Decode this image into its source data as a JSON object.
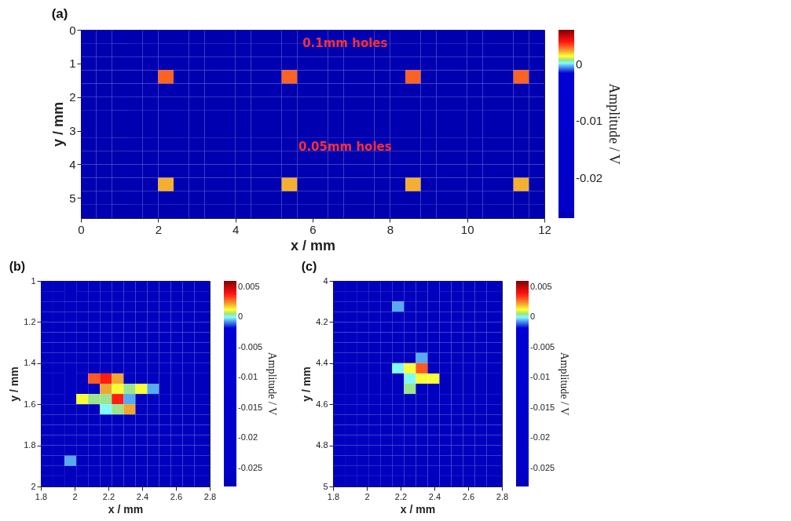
{
  "chart_data": [
    {
      "type": "heatmap",
      "title": "(a)",
      "xlabel": "x / mm",
      "ylabel": "y / mm",
      "clabel": "Amplitude / V",
      "annotations": [
        "0.1mm holes",
        "0.05mm holes"
      ],
      "xlim": [
        0,
        12
      ],
      "xticks": [
        0,
        2,
        4,
        6,
        8,
        10,
        12
      ],
      "ylim": [
        5.6,
        0
      ],
      "yticks": [
        0,
        1,
        2,
        3,
        4,
        5
      ],
      "clim": [
        -0.027,
        0.006
      ],
      "cticks": [
        0,
        -0.01,
        -0.02
      ],
      "x": [
        0.2,
        0.6,
        1,
        1.4,
        1.8,
        2.2,
        2.6,
        3,
        3.4,
        3.8,
        4.2,
        4.6,
        5,
        5.4,
        5.8,
        6.2,
        6.6,
        7,
        7.4,
        7.8,
        8.2,
        8.6,
        9,
        9.4,
        9.8,
        10.2,
        10.6,
        11,
        11.4,
        11.8
      ],
      "y": [
        0.2,
        0.6,
        1,
        1.4,
        1.8,
        2.2,
        2.6,
        3,
        3.4,
        3.8,
        4.2,
        4.6,
        5,
        5.4
      ],
      "cells": [
        [
          -0.027,
          -0.027,
          -0.027,
          -0.027,
          -0.027,
          -0.027,
          -0.027,
          -0.027,
          -0.027,
          -0.027,
          -0.027,
          -0.027,
          -0.027,
          -0.027,
          -0.027,
          -0.027,
          -0.027,
          -0.027,
          -0.027,
          -0.027,
          -0.027,
          -0.027,
          -0.027,
          -0.027,
          -0.027,
          -0.027,
          -0.027,
          -0.027,
          -0.027,
          -0.027
        ],
        [
          -0.027,
          -0.027,
          -0.027,
          -0.027,
          -0.027,
          -0.027,
          -0.027,
          -0.027,
          -0.027,
          -0.027,
          -0.027,
          -0.027,
          -0.027,
          -0.027,
          -0.027,
          -0.027,
          -0.027,
          -0.027,
          -0.027,
          -0.027,
          -0.027,
          -0.027,
          -0.027,
          -0.027,
          -0.027,
          -0.027,
          -0.027,
          -0.027,
          -0.027,
          -0.027
        ],
        [
          -0.027,
          -0.027,
          -0.027,
          -0.027,
          -0.027,
          -0.027,
          -0.027,
          -0.027,
          -0.027,
          -0.027,
          -0.027,
          -0.027,
          -0.027,
          -0.027,
          -0.027,
          -0.027,
          -0.027,
          -0.027,
          -0.027,
          -0.027,
          -0.027,
          -0.027,
          -0.027,
          -0.027,
          -0.027,
          -0.027,
          -0.027,
          -0.027,
          -0.027,
          -0.027
        ],
        [
          -0.027,
          -0.027,
          -0.027,
          -0.027,
          -0.027,
          0.003,
          -0.027,
          -0.027,
          -0.027,
          -0.027,
          -0.027,
          -0.027,
          -0.027,
          0.003,
          -0.027,
          -0.027,
          -0.027,
          -0.027,
          -0.027,
          -0.027,
          -0.027,
          0.003,
          -0.027,
          -0.027,
          -0.027,
          -0.027,
          -0.027,
          -0.027,
          0.003,
          -0.027
        ],
        [
          -0.027,
          -0.027,
          -0.027,
          -0.027,
          -0.027,
          -0.027,
          -0.027,
          -0.027,
          -0.027,
          -0.027,
          -0.027,
          -0.027,
          -0.027,
          -0.027,
          -0.027,
          -0.027,
          -0.027,
          -0.027,
          -0.027,
          -0.027,
          -0.027,
          -0.027,
          -0.027,
          -0.027,
          -0.027,
          -0.027,
          -0.027,
          -0.027,
          -0.027,
          -0.027
        ],
        [
          -0.027,
          -0.027,
          -0.027,
          -0.027,
          -0.027,
          -0.027,
          -0.027,
          -0.027,
          -0.027,
          -0.027,
          -0.027,
          -0.027,
          -0.027,
          -0.027,
          -0.027,
          -0.027,
          -0.027,
          -0.027,
          -0.027,
          -0.027,
          -0.027,
          -0.027,
          -0.027,
          -0.027,
          -0.027,
          -0.027,
          -0.027,
          -0.027,
          -0.027,
          -0.027
        ],
        [
          -0.027,
          -0.027,
          -0.027,
          -0.027,
          -0.027,
          -0.027,
          -0.027,
          -0.027,
          -0.027,
          -0.027,
          -0.027,
          -0.027,
          -0.027,
          -0.027,
          -0.027,
          -0.027,
          -0.027,
          -0.027,
          -0.027,
          -0.027,
          -0.027,
          -0.027,
          -0.027,
          -0.027,
          -0.027,
          -0.027,
          -0.027,
          -0.027,
          -0.027,
          -0.027
        ],
        [
          -0.027,
          -0.027,
          -0.027,
          -0.027,
          -0.027,
          -0.027,
          -0.027,
          -0.027,
          -0.027,
          -0.027,
          -0.027,
          -0.027,
          -0.027,
          -0.027,
          -0.027,
          -0.027,
          -0.027,
          -0.027,
          -0.027,
          -0.027,
          -0.027,
          -0.027,
          -0.027,
          -0.027,
          -0.027,
          -0.027,
          -0.027,
          -0.027,
          -0.027,
          -0.027
        ],
        [
          -0.027,
          -0.027,
          -0.027,
          -0.027,
          -0.027,
          -0.027,
          -0.027,
          -0.027,
          -0.027,
          -0.027,
          -0.027,
          -0.027,
          -0.027,
          -0.027,
          -0.027,
          -0.027,
          -0.027,
          -0.027,
          -0.027,
          -0.027,
          -0.027,
          -0.027,
          -0.027,
          -0.027,
          -0.027,
          -0.027,
          -0.027,
          -0.027,
          -0.027,
          -0.027
        ],
        [
          -0.027,
          -0.027,
          -0.027,
          -0.027,
          -0.027,
          -0.027,
          -0.027,
          -0.027,
          -0.027,
          -0.027,
          -0.027,
          -0.027,
          -0.027,
          -0.027,
          -0.027,
          -0.027,
          -0.027,
          -0.027,
          -0.027,
          -0.027,
          -0.027,
          -0.027,
          -0.027,
          -0.027,
          -0.027,
          -0.027,
          -0.027,
          -0.027,
          -0.027,
          -0.027
        ],
        [
          -0.027,
          -0.027,
          -0.027,
          -0.027,
          -0.027,
          -0.027,
          -0.027,
          -0.027,
          -0.027,
          -0.027,
          -0.027,
          -0.027,
          -0.027,
          -0.027,
          -0.027,
          -0.027,
          -0.027,
          -0.027,
          -0.027,
          -0.027,
          -0.027,
          -0.027,
          -0.027,
          -0.027,
          -0.027,
          -0.027,
          -0.027,
          -0.027,
          -0.027,
          -0.027
        ],
        [
          -0.027,
          -0.027,
          -0.027,
          -0.027,
          -0.027,
          0.0022,
          -0.027,
          -0.027,
          -0.027,
          -0.027,
          -0.027,
          -0.027,
          -0.027,
          0.0022,
          -0.027,
          -0.027,
          -0.027,
          -0.027,
          -0.027,
          -0.027,
          -0.027,
          0.0022,
          -0.027,
          -0.027,
          -0.027,
          -0.027,
          -0.027,
          -0.027,
          0.0022,
          -0.027
        ],
        [
          -0.027,
          -0.027,
          -0.027,
          -0.027,
          -0.027,
          -0.027,
          -0.027,
          -0.027,
          -0.027,
          -0.027,
          -0.027,
          -0.027,
          -0.027,
          -0.027,
          -0.027,
          -0.027,
          -0.027,
          -0.027,
          -0.027,
          -0.027,
          -0.027,
          -0.027,
          -0.027,
          -0.027,
          -0.027,
          -0.027,
          -0.027,
          -0.027,
          -0.027,
          -0.027
        ],
        [
          -0.027,
          -0.027,
          -0.027,
          -0.027,
          -0.027,
          -0.027,
          -0.027,
          -0.027,
          -0.027,
          -0.027,
          -0.027,
          -0.027,
          -0.027,
          -0.027,
          -0.027,
          -0.027,
          -0.027,
          -0.027,
          -0.027,
          -0.027,
          -0.027,
          -0.027,
          -0.027,
          -0.027,
          -0.027,
          -0.027,
          -0.027,
          -0.027,
          -0.027,
          -0.027
        ]
      ]
    },
    {
      "type": "heatmap",
      "title": "(b)",
      "xlabel": "x / mm",
      "ylabel": "y / mm",
      "clabel": "Amplitude / V",
      "xlim": [
        1.8,
        2.8
      ],
      "xticks": [
        1.8,
        2,
        2.2,
        2.4,
        2.6,
        2.8
      ],
      "ylim": [
        2,
        1
      ],
      "yticks": [
        1,
        1.2,
        1.4,
        1.6,
        1.8,
        2
      ],
      "clim": [
        -0.028,
        0.006
      ],
      "cticks": [
        0.005,
        0,
        -0.005,
        -0.01,
        -0.015,
        -0.02,
        -0.025
      ],
      "x": [
        1.835,
        1.905,
        1.975,
        2.045,
        2.115,
        2.185,
        2.255,
        2.325,
        2.395,
        2.465,
        2.535,
        2.605,
        2.675,
        2.745
      ],
      "y": [
        1.025,
        1.075,
        1.125,
        1.175,
        1.225,
        1.275,
        1.325,
        1.375,
        1.425,
        1.475,
        1.525,
        1.575,
        1.625,
        1.675,
        1.725,
        1.775,
        1.825,
        1.875,
        1.925,
        1.975
      ],
      "cells": [
        [
          -0.027,
          -0.027,
          -0.027,
          -0.027,
          -0.027,
          -0.027,
          -0.027,
          -0.027,
          -0.027,
          -0.027,
          -0.027,
          -0.027,
          -0.027,
          -0.027
        ],
        [
          -0.027,
          -0.027,
          -0.027,
          -0.027,
          -0.027,
          -0.027,
          -0.027,
          -0.027,
          -0.027,
          -0.027,
          -0.027,
          -0.027,
          -0.027,
          -0.027
        ],
        [
          -0.027,
          -0.027,
          -0.027,
          -0.027,
          -0.027,
          -0.027,
          -0.027,
          -0.027,
          -0.027,
          -0.027,
          -0.027,
          -0.027,
          -0.027,
          -0.027
        ],
        [
          -0.027,
          -0.027,
          -0.027,
          -0.027,
          -0.027,
          -0.027,
          -0.027,
          -0.027,
          -0.027,
          -0.027,
          -0.027,
          -0.027,
          -0.027,
          -0.027
        ],
        [
          -0.027,
          -0.027,
          -0.027,
          -0.027,
          -0.027,
          -0.027,
          -0.027,
          -0.027,
          -0.027,
          -0.027,
          -0.027,
          -0.027,
          -0.027,
          -0.027
        ],
        [
          -0.027,
          -0.027,
          -0.027,
          -0.027,
          -0.027,
          -0.027,
          -0.027,
          -0.027,
          -0.027,
          -0.027,
          -0.027,
          -0.027,
          -0.027,
          -0.027
        ],
        [
          -0.027,
          -0.027,
          -0.027,
          -0.027,
          -0.027,
          -0.027,
          -0.027,
          -0.027,
          -0.027,
          -0.027,
          -0.027,
          -0.027,
          -0.027,
          -0.027
        ],
        [
          -0.027,
          -0.027,
          -0.027,
          -0.027,
          -0.027,
          -0.027,
          -0.027,
          -0.027,
          -0.027,
          -0.027,
          -0.027,
          -0.027,
          -0.027,
          -0.027
        ],
        [
          -0.027,
          -0.027,
          -0.027,
          -0.027,
          -0.027,
          -0.027,
          -0.027,
          -0.027,
          -0.027,
          -0.027,
          -0.027,
          -0.027,
          -0.027,
          -0.027
        ],
        [
          -0.027,
          -0.027,
          -0.027,
          -0.027,
          0.003,
          0.0038,
          0.0022,
          -0.027,
          -0.027,
          -0.027,
          -0.027,
          -0.027,
          -0.027,
          -0.027
        ],
        [
          -0.027,
          -0.027,
          -0.027,
          -0.027,
          -0.027,
          0.0022,
          0.0012,
          0.0005,
          0.0012,
          -0.0006,
          -0.027,
          -0.027,
          -0.027,
          -0.027
        ],
        [
          -0.027,
          -0.027,
          -0.027,
          0.0012,
          0.0005,
          0.0005,
          0.0038,
          -0.0006,
          -0.027,
          -0.027,
          -0.027,
          -0.027,
          -0.027,
          -0.027
        ],
        [
          -0.027,
          -0.027,
          -0.027,
          -0.027,
          -0.027,
          0,
          0.0005,
          0.0022,
          -0.027,
          -0.027,
          -0.027,
          -0.027,
          -0.027,
          -0.027
        ],
        [
          -0.027,
          -0.027,
          -0.027,
          -0.027,
          -0.027,
          -0.027,
          -0.027,
          -0.027,
          -0.027,
          -0.027,
          -0.027,
          -0.027,
          -0.027,
          -0.027
        ],
        [
          -0.027,
          -0.027,
          -0.027,
          -0.027,
          -0.027,
          -0.027,
          -0.027,
          -0.027,
          -0.027,
          -0.027,
          -0.027,
          -0.027,
          -0.027,
          -0.027
        ],
        [
          -0.027,
          -0.027,
          -0.027,
          -0.027,
          -0.027,
          -0.027,
          -0.027,
          -0.027,
          -0.027,
          -0.027,
          -0.027,
          -0.027,
          -0.027,
          -0.027
        ],
        [
          -0.027,
          -0.027,
          -0.027,
          -0.027,
          -0.027,
          -0.027,
          -0.027,
          -0.027,
          -0.027,
          -0.027,
          -0.027,
          -0.027,
          -0.027,
          -0.027
        ],
        [
          -0.027,
          -0.027,
          -0.0006,
          -0.027,
          -0.027,
          -0.027,
          -0.027,
          -0.027,
          -0.027,
          -0.027,
          -0.027,
          -0.027,
          -0.027,
          -0.027
        ],
        [
          -0.027,
          -0.027,
          -0.027,
          -0.027,
          -0.027,
          -0.027,
          -0.027,
          -0.027,
          -0.027,
          -0.027,
          -0.027,
          -0.027,
          -0.027,
          -0.027
        ],
        [
          -0.027,
          -0.027,
          -0.027,
          -0.027,
          -0.027,
          -0.027,
          -0.027,
          -0.027,
          -0.027,
          -0.027,
          -0.027,
          -0.027,
          -0.027,
          -0.027
        ]
      ]
    },
    {
      "type": "heatmap",
      "title": "(c)",
      "xlabel": "x / mm",
      "ylabel": "y / mm",
      "clabel": "Amplitude / V",
      "xlim": [
        1.8,
        2.8
      ],
      "xticks": [
        1.8,
        2,
        2.2,
        2.4,
        2.6,
        2.8
      ],
      "ylim": [
        5,
        4
      ],
      "yticks": [
        4,
        4.2,
        4.4,
        4.6,
        4.8,
        5
      ],
      "clim": [
        -0.028,
        0.006
      ],
      "cticks": [
        0.005,
        0,
        -0.005,
        -0.01,
        -0.015,
        -0.02,
        -0.025
      ],
      "x": [
        1.835,
        1.905,
        1.975,
        2.045,
        2.115,
        2.185,
        2.255,
        2.325,
        2.395,
        2.465,
        2.535,
        2.605,
        2.675,
        2.745
      ],
      "y": [
        4.025,
        4.075,
        4.125,
        4.175,
        4.225,
        4.275,
        4.325,
        4.375,
        4.425,
        4.475,
        4.525,
        4.575,
        4.625,
        4.675,
        4.725,
        4.775,
        4.825,
        4.875,
        4.925,
        4.975
      ],
      "cells": [
        [
          -0.027,
          -0.027,
          -0.027,
          -0.027,
          -0.027,
          -0.027,
          -0.027,
          -0.027,
          -0.027,
          -0.027,
          -0.027,
          -0.027,
          -0.027,
          -0.027
        ],
        [
          -0.027,
          -0.027,
          -0.027,
          -0.027,
          -0.027,
          -0.027,
          -0.027,
          -0.027,
          -0.027,
          -0.027,
          -0.027,
          -0.027,
          -0.027,
          -0.027
        ],
        [
          -0.027,
          -0.027,
          -0.027,
          -0.027,
          -0.027,
          -0.0006,
          -0.027,
          -0.027,
          -0.027,
          -0.027,
          -0.027,
          -0.027,
          -0.027,
          -0.027
        ],
        [
          -0.027,
          -0.027,
          -0.027,
          -0.027,
          -0.027,
          -0.027,
          -0.027,
          -0.027,
          -0.027,
          -0.027,
          -0.027,
          -0.027,
          -0.027,
          -0.027
        ],
        [
          -0.027,
          -0.027,
          -0.027,
          -0.027,
          -0.027,
          -0.027,
          -0.027,
          -0.027,
          -0.027,
          -0.027,
          -0.027,
          -0.027,
          -0.027,
          -0.027
        ],
        [
          -0.027,
          -0.027,
          -0.027,
          -0.027,
          -0.027,
          -0.027,
          -0.027,
          -0.027,
          -0.027,
          -0.027,
          -0.027,
          -0.027,
          -0.027,
          -0.027
        ],
        [
          -0.027,
          -0.027,
          -0.027,
          -0.027,
          -0.027,
          -0.027,
          -0.027,
          -0.027,
          -0.027,
          -0.027,
          -0.027,
          -0.027,
          -0.027,
          -0.027
        ],
        [
          -0.027,
          -0.027,
          -0.027,
          -0.027,
          -0.027,
          -0.027,
          -0.027,
          -0.0006,
          -0.027,
          -0.027,
          -0.027,
          -0.027,
          -0.027,
          -0.027
        ],
        [
          -0.027,
          -0.027,
          -0.027,
          -0.027,
          -0.027,
          0,
          0.0012,
          0.003,
          -0.027,
          -0.027,
          -0.027,
          -0.027,
          -0.027,
          -0.027
        ],
        [
          -0.027,
          -0.027,
          -0.027,
          -0.027,
          -0.027,
          -0.027,
          0,
          0.0012,
          0.0012,
          -0.027,
          -0.027,
          -0.027,
          -0.027,
          -0.027
        ],
        [
          -0.027,
          -0.027,
          -0.027,
          -0.027,
          -0.027,
          -0.027,
          0.0005,
          -0.027,
          -0.027,
          -0.027,
          -0.027,
          -0.027,
          -0.027,
          -0.027
        ],
        [
          -0.027,
          -0.027,
          -0.027,
          -0.027,
          -0.027,
          -0.027,
          -0.027,
          -0.027,
          -0.027,
          -0.027,
          -0.027,
          -0.027,
          -0.027,
          -0.027
        ],
        [
          -0.027,
          -0.027,
          -0.027,
          -0.027,
          -0.027,
          -0.027,
          -0.027,
          -0.027,
          -0.027,
          -0.027,
          -0.027,
          -0.027,
          -0.027,
          -0.027
        ],
        [
          -0.027,
          -0.027,
          -0.027,
          -0.027,
          -0.027,
          -0.027,
          -0.027,
          -0.027,
          -0.027,
          -0.027,
          -0.027,
          -0.027,
          -0.027,
          -0.027
        ],
        [
          -0.027,
          -0.027,
          -0.027,
          -0.027,
          -0.027,
          -0.027,
          -0.027,
          -0.027,
          -0.027,
          -0.027,
          -0.027,
          -0.027,
          -0.027,
          -0.027
        ],
        [
          -0.027,
          -0.027,
          -0.027,
          -0.027,
          -0.027,
          -0.027,
          -0.027,
          -0.027,
          -0.027,
          -0.027,
          -0.027,
          -0.027,
          -0.027,
          -0.027
        ],
        [
          -0.027,
          -0.027,
          -0.027,
          -0.027,
          -0.027,
          -0.027,
          -0.027,
          -0.027,
          -0.027,
          -0.027,
          -0.027,
          -0.027,
          -0.027,
          -0.027
        ],
        [
          -0.027,
          -0.027,
          -0.027,
          -0.027,
          -0.027,
          -0.027,
          -0.027,
          -0.027,
          -0.027,
          -0.027,
          -0.027,
          -0.027,
          -0.027,
          -0.027
        ],
        [
          -0.027,
          -0.027,
          -0.027,
          -0.027,
          -0.027,
          -0.027,
          -0.027,
          -0.027,
          -0.027,
          -0.027,
          -0.027,
          -0.027,
          -0.027,
          -0.027
        ],
        [
          -0.027,
          -0.027,
          -0.027,
          -0.027,
          -0.027,
          -0.027,
          -0.027,
          -0.027,
          -0.027,
          -0.027,
          -0.027,
          -0.027,
          -0.027,
          -0.027
        ]
      ]
    }
  ]
}
